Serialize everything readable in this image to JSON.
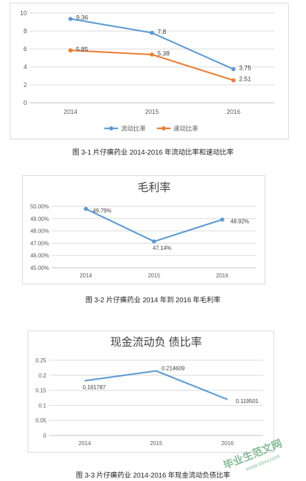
{
  "chart_data": [
    {
      "type": "line",
      "categories": [
        "2014",
        "2015",
        "2016"
      ],
      "series": [
        {
          "name": "流动比率",
          "values": [
            9.36,
            7.8,
            3.75
          ],
          "labels": [
            "9.36",
            "7.8",
            "3.75"
          ],
          "color": "#5b9bd5"
        },
        {
          "name": "速动比率",
          "values": [
            5.85,
            5.38,
            2.51
          ],
          "labels": [
            "5.85",
            "5.38",
            "2.51"
          ],
          "color": "#ed7d31"
        }
      ],
      "yticks": [
        "0",
        "2",
        "4",
        "6",
        "8",
        "10"
      ],
      "ylim": [
        0,
        10
      ],
      "title": "",
      "legend": "bottom",
      "grid": true
    },
    {
      "type": "line",
      "title": "毛利率",
      "categories": [
        "2014",
        "2015",
        "2016"
      ],
      "series": [
        {
          "values": [
            49.79,
            47.14,
            48.92
          ],
          "labels": [
            "49.79%",
            "47.14%",
            "48.92%"
          ],
          "color": "#5b9bd5"
        }
      ],
      "yticks": [
        "45.00%",
        "46.00%",
        "47.00%",
        "48.00%",
        "49.00%",
        "50.00%"
      ],
      "ylim": [
        45,
        50
      ],
      "grid": true
    },
    {
      "type": "line",
      "title": "现金流动负 债比率",
      "categories": [
        "2014",
        "2015",
        "2016"
      ],
      "series": [
        {
          "values": [
            0.181787,
            0.214609,
            0.119501
          ],
          "labels": [
            "0.181787",
            "0.214609",
            "0.119501"
          ],
          "color": "#5b9bd5"
        }
      ],
      "yticks": [
        "0",
        "0.05",
        "0.1",
        "0.15",
        "0.2",
        "0.25"
      ],
      "ylim": [
        0,
        0.25
      ],
      "grid": true
    }
  ],
  "captions": [
    "图 3-1  片仔癀药业 2014-2016 年流动比率和速动比率",
    "图 3-2  片仔癀药业 2014 年到 2016 年毛利率",
    "图 3-3 片仔癀药业 2014-2016 年现金流动负债比率"
  ],
  "watermark": {
    "text": "毕业生范文网",
    "url": "www.sbvv.com"
  }
}
